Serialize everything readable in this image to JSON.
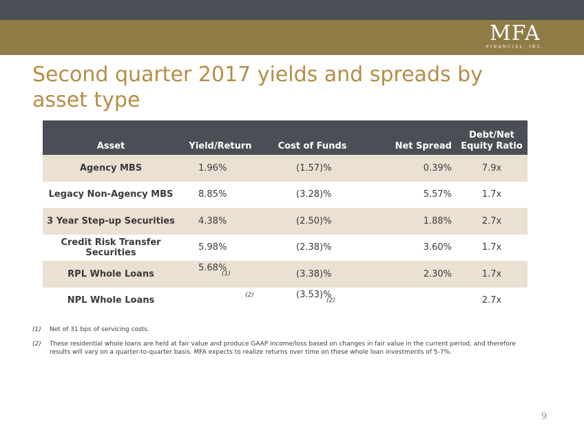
{
  "logo": {
    "mark": "MFA",
    "sub": "FINANCIAL, INC."
  },
  "title": "Second quarter 2017 yields and spreads by asset type",
  "table": {
    "headers": {
      "asset": "Asset",
      "yield": "Yield/Return",
      "cost": "Cost of Funds",
      "spread": "Net Spread",
      "ratio_line1": "Debt/Net",
      "ratio_line2": "Equity Ratio"
    },
    "rows": [
      {
        "asset": "Agency MBS",
        "yield": "1.96%",
        "yield_fn": "",
        "cost": "(1.57)%",
        "cost_fn": "",
        "spread": "0.39%",
        "ratio": "7.9x"
      },
      {
        "asset": "Legacy Non-Agency MBS",
        "yield": "8.85%",
        "yield_fn": "",
        "cost": "(3.28)%",
        "cost_fn": "",
        "spread": "5.57%",
        "ratio": "1.7x"
      },
      {
        "asset": "3 Year Step-up Securities",
        "yield": "4.38%",
        "yield_fn": "",
        "cost": "(2.50)%",
        "cost_fn": "",
        "spread": "1.88%",
        "ratio": "2.7x"
      },
      {
        "asset": "Credit Risk Transfer Securities",
        "yield": "5.98%",
        "yield_fn": "",
        "cost": "(2.38)%",
        "cost_fn": "",
        "spread": "3.60%",
        "ratio": "1.7x"
      },
      {
        "asset": "RPL Whole Loans",
        "yield": "5.68%",
        "yield_fn": "(1)",
        "cost": "(3.38)%",
        "cost_fn": "",
        "spread": "2.30%",
        "ratio": "1.7x"
      },
      {
        "asset": "NPL Whole Loans",
        "yield": "",
        "yield_fn": "(2)",
        "cost": "(3.53)%",
        "cost_fn": "(2)",
        "spread": "",
        "ratio": "2.7x"
      }
    ]
  },
  "footnotes": [
    {
      "mark": "(1)",
      "text": "Net of 31 bps of servicing costs."
    },
    {
      "mark": "(2)",
      "text": "These residential whole loans are held at fair value and produce GAAP income/loss based on changes in fair value in the current period, and therefore results will vary on a quarter-to-quarter basis. MFA expects to realize returns over time on these whole loan investments of 5-7%."
    }
  ],
  "page_number": "9",
  "colors": {
    "header_bar": "#4a4f55",
    "gold_bar": "#8f7b45",
    "title": "#b58d45",
    "row_shade": "#eae1d3"
  }
}
